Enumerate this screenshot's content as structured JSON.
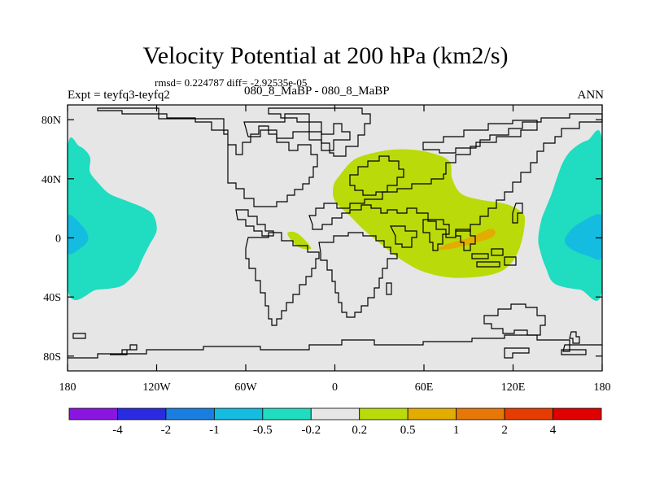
{
  "header": {
    "title": "Velocity Potential at 200 hPa (km2/s)",
    "stats": "rmsd= 0.224787 diff= -2.92535e-05",
    "expt": "Expt = teyfq3-teyfq2",
    "case": "080_8_MaBP - 080_8_MaBP",
    "season": "ANN"
  },
  "chart_data": {
    "type": "heatmap",
    "subtype": "global-map-filled-contour",
    "title": "Velocity Potential at 200 hPa (km2/s)",
    "units": "km2/s",
    "xlim": [
      -180,
      180
    ],
    "ylim": [
      -90,
      90
    ],
    "x_ticks": [
      {
        "value": -180,
        "label": "180"
      },
      {
        "value": -120,
        "label": "120W"
      },
      {
        "value": -60,
        "label": "60W"
      },
      {
        "value": 0,
        "label": "0"
      },
      {
        "value": 60,
        "label": "60E"
      },
      {
        "value": 120,
        "label": "120E"
      },
      {
        "value": 180,
        "label": "180"
      }
    ],
    "y_ticks": [
      {
        "value": 80,
        "label": "80N"
      },
      {
        "value": 40,
        "label": "40N"
      },
      {
        "value": 0,
        "label": "0"
      },
      {
        "value": -40,
        "label": "40S"
      },
      {
        "value": -80,
        "label": "80S"
      }
    ],
    "colorbar": {
      "colors": [
        "#8a14e0",
        "#2a2ae0",
        "#1a7ee0",
        "#14bce0",
        "#20dcc0",
        "#e6e6e6",
        "#bada0a",
        "#e2ac00",
        "#e67808",
        "#e63c00",
        "#e00000"
      ],
      "labels": [
        "-4",
        "-2",
        "-1",
        "-0.5",
        "-0.2",
        "0.2",
        "0.5",
        "1",
        "2",
        "4"
      ]
    },
    "regions": [
      {
        "name": "west-pacific-negative",
        "level": "-0.5 to -0.2",
        "color": "#20dcc0",
        "lonlat": [
          [
            -180,
            -35
          ],
          [
            -180,
            60
          ],
          [
            -172,
            62
          ],
          [
            -165,
            55
          ],
          [
            -165,
            45
          ],
          [
            -160,
            38
          ],
          [
            -152,
            30
          ],
          [
            -140,
            25
          ],
          [
            -128,
            20
          ],
          [
            -122,
            15
          ],
          [
            -120,
            5
          ],
          [
            -125,
            -5
          ],
          [
            -130,
            -15
          ],
          [
            -133,
            -22
          ],
          [
            -138,
            -28
          ],
          [
            -145,
            -33
          ],
          [
            -160,
            -35
          ]
        ]
      },
      {
        "name": "west-pacific-core",
        "level": "-1 to -0.5",
        "color": "#14bce0",
        "lonlat": [
          [
            -180,
            -10
          ],
          [
            -180,
            15
          ],
          [
            -170,
            8
          ],
          [
            -166,
            0
          ],
          [
            -170,
            -6
          ]
        ]
      },
      {
        "name": "east-pacific-negative",
        "level": "-0.5 to -0.2",
        "color": "#20dcc0",
        "lonlat": [
          [
            180,
            -35
          ],
          [
            180,
            65
          ],
          [
            170,
            66
          ],
          [
            160,
            60
          ],
          [
            154,
            52
          ],
          [
            150,
            42
          ],
          [
            146,
            30
          ],
          [
            142,
            20
          ],
          [
            139,
            12
          ],
          [
            137,
            0
          ],
          [
            138,
            -8
          ],
          [
            142,
            -20
          ],
          [
            148,
            -31
          ],
          [
            165,
            -35
          ]
        ]
      },
      {
        "name": "east-pacific-core",
        "level": "-1 to -0.5",
        "color": "#14bce0",
        "lonlat": [
          [
            180,
            -13
          ],
          [
            180,
            15
          ],
          [
            165,
            10
          ],
          [
            157,
            3
          ],
          [
            155,
            -3
          ],
          [
            160,
            -8
          ],
          [
            170,
            -12
          ]
        ]
      },
      {
        "name": "maritime-continent-positive",
        "level": "0.2 to 0.5",
        "color": "#bada0a",
        "lonlat": [
          [
            3,
            42
          ],
          [
            13,
            53
          ],
          [
            28,
            58
          ],
          [
            45,
            60
          ],
          [
            63,
            58
          ],
          [
            77,
            52
          ],
          [
            79,
            40
          ],
          [
            85,
            30
          ],
          [
            97,
            26
          ],
          [
            115,
            23
          ],
          [
            125,
            18
          ],
          [
            128,
            12
          ],
          [
            125,
            -5
          ],
          [
            118,
            -18
          ],
          [
            105,
            -25
          ],
          [
            80,
            -27
          ],
          [
            60,
            -23
          ],
          [
            45,
            -15
          ],
          [
            32,
            -5
          ],
          [
            20,
            5
          ],
          [
            10,
            15
          ],
          [
            0,
            25
          ],
          [
            -1,
            35
          ]
        ]
      },
      {
        "name": "indian-ocean-maximum",
        "level": "0.5 to 1",
        "color": "#e2ac00",
        "lonlat": [
          [
            69,
            -8
          ],
          [
            76,
            -4
          ],
          [
            90,
            0
          ],
          [
            104,
            6
          ],
          [
            108,
            4
          ],
          [
            105,
            0
          ],
          [
            92,
            -4
          ],
          [
            80,
            -7
          ]
        ]
      },
      {
        "name": "atlantic-positive-patch",
        "level": "0.2 to 0.5",
        "color": "#bada0a",
        "lonlat": [
          [
            -32,
            3
          ],
          [
            -25,
            3
          ],
          [
            -16,
            -7
          ],
          [
            -25,
            -6
          ]
        ]
      }
    ]
  }
}
